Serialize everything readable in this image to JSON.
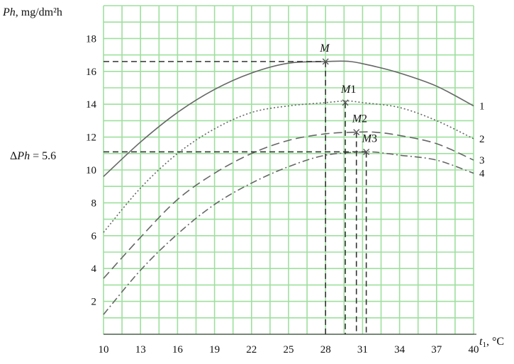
{
  "chart_data": {
    "type": "line",
    "ylabel_italic": "Ph",
    "ylabel_unit": ", mg/dm²h",
    "xlabel_main": "t",
    "xlabel_sub": "1",
    "xlabel_unit": ", °C",
    "xlim": [
      10,
      40
    ],
    "ylim": [
      0,
      20
    ],
    "x_ticks": [
      10,
      13,
      16,
      19,
      22,
      25,
      28,
      31,
      34,
      37,
      40
    ],
    "y_ticks": [
      2,
      4,
      6,
      8,
      10,
      12,
      14,
      16,
      18
    ],
    "grid": true,
    "grid_color": "#9edf9e",
    "series": [
      {
        "name": "1",
        "style": "solid",
        "color": "#666666",
        "x": [
          10,
          13,
          16,
          19,
          22,
          25,
          28,
          30,
          32,
          34,
          37,
          40
        ],
        "y": [
          9.6,
          11.7,
          13.5,
          14.9,
          15.9,
          16.5,
          16.6,
          16.6,
          16.3,
          15.9,
          15.1,
          13.9
        ]
      },
      {
        "name": "2",
        "style": "dotted",
        "color": "#666666",
        "x": [
          10,
          13,
          16,
          19,
          22,
          25,
          28,
          29.7,
          31,
          34,
          37,
          40
        ],
        "y": [
          6.2,
          8.9,
          11.0,
          12.5,
          13.5,
          13.9,
          14.1,
          14.2,
          14.1,
          13.8,
          13.0,
          11.9
        ]
      },
      {
        "name": "3",
        "style": "dashed",
        "color": "#666666",
        "x": [
          10,
          13,
          16,
          19,
          22,
          25,
          28,
          30.5,
          32,
          34,
          37,
          40
        ],
        "y": [
          3.4,
          5.9,
          8.2,
          9.8,
          11.0,
          11.8,
          12.2,
          12.3,
          12.3,
          12.1,
          11.6,
          10.6
        ]
      },
      {
        "name": "4",
        "style": "dash-dot",
        "color": "#666666",
        "x": [
          10,
          13,
          16,
          19,
          22,
          25,
          28,
          31.3,
          33,
          34,
          37,
          40
        ],
        "y": [
          1.2,
          3.9,
          6.1,
          7.9,
          9.2,
          10.2,
          10.9,
          11.1,
          11.0,
          10.9,
          10.6,
          9.8
        ]
      }
    ],
    "points": [
      {
        "label": "M",
        "x": 28.0,
        "y": 16.6
      },
      {
        "label": "M1",
        "x": 29.6,
        "y": 14.1
      },
      {
        "label": "M2",
        "x": 30.5,
        "y": 12.3
      },
      {
        "label": "M3",
        "x": 31.3,
        "y": 11.1
      }
    ],
    "hlines_y": [
      16.6,
      11.1
    ],
    "delta_label_italic": "Ph",
    "delta_label_prefix": "Δ",
    "delta_label_value": " = 5.6"
  }
}
